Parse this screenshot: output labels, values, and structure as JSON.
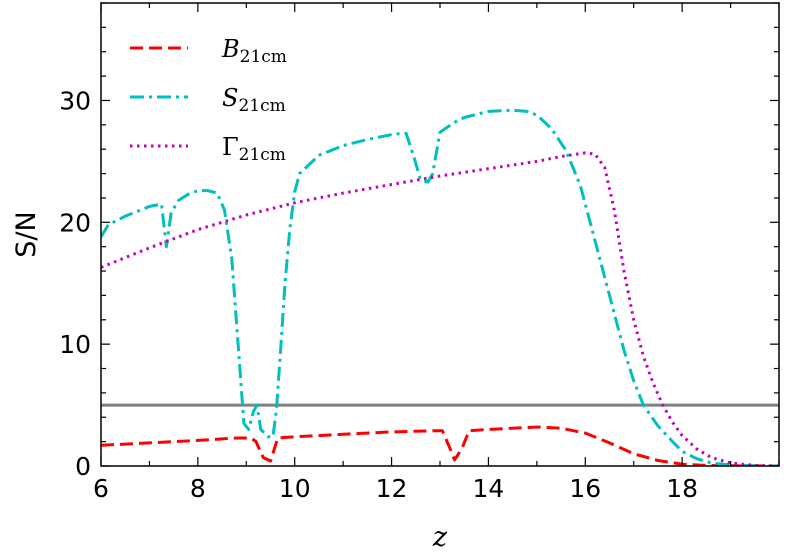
{
  "chart_data": {
    "type": "line",
    "xlabel": "z",
    "ylabel": "S/N",
    "xlim": [
      6,
      20
    ],
    "ylim": [
      0,
      38
    ],
    "xticks": [
      6,
      8,
      10,
      12,
      14,
      16,
      18
    ],
    "yticks": [
      0,
      10,
      20,
      30
    ],
    "grid": false,
    "legend_position": "top-left",
    "threshold": {
      "y": 5,
      "color": "#808080"
    },
    "series": [
      {
        "name": "B",
        "subscript": "21cm",
        "color": "#ff0000",
        "dash": "dashed",
        "x": [
          6,
          7,
          8,
          8.8,
          9.1,
          9.2,
          9.35,
          9.5,
          9.65,
          10,
          11,
          12,
          12.9,
          13.05,
          13.2,
          13.3,
          13.45,
          13.6,
          14,
          14.5,
          15,
          15.5,
          16,
          16.5,
          17,
          17.5,
          18,
          18.5,
          19,
          19.5,
          20
        ],
        "y": [
          1.7,
          1.9,
          2.1,
          2.3,
          2.3,
          2.0,
          0.7,
          0.4,
          2.3,
          2.4,
          2.6,
          2.8,
          2.9,
          2.9,
          1.5,
          0.5,
          1.4,
          2.9,
          3.0,
          3.1,
          3.2,
          3.1,
          2.7,
          1.9,
          1.0,
          0.45,
          0.15,
          0.05,
          0.02,
          0.01,
          0.0
        ]
      },
      {
        "name": "S",
        "subscript": "21cm",
        "color": "#00bfbf",
        "dash": "dashdot",
        "x": [
          6,
          6.15,
          6.5,
          7,
          7.25,
          7.35,
          7.45,
          7.6,
          7.8,
          8,
          8.2,
          8.4,
          8.55,
          8.7,
          8.85,
          8.95,
          9.05,
          9.15,
          9.22,
          9.3,
          9.45,
          9.55,
          9.62,
          9.7,
          9.8,
          9.9,
          10,
          10.1,
          10.5,
          11,
          11.5,
          12,
          12.2,
          12.3,
          12.45,
          12.6,
          12.75,
          12.85,
          13,
          13.3,
          13.5,
          14,
          14.5,
          14.8,
          15,
          15.3,
          15.6,
          15.9,
          16.2,
          16.5,
          16.8,
          17,
          17.2,
          17.5,
          17.8,
          18,
          18.3,
          18.6,
          19,
          19.5,
          20
        ],
        "y": [
          18.8,
          19.8,
          20.5,
          21.3,
          21.5,
          18.0,
          20.8,
          21.8,
          22.3,
          22.6,
          22.6,
          22.4,
          21.0,
          17.0,
          9.0,
          3.5,
          3.0,
          4.5,
          5.0,
          3.0,
          2.4,
          2.4,
          4.5,
          9.0,
          15.0,
          19.5,
          22.5,
          24.0,
          25.5,
          26.3,
          26.8,
          27.2,
          27.3,
          27.3,
          25.5,
          23.5,
          23.3,
          24.0,
          27.4,
          28.2,
          28.6,
          29.1,
          29.2,
          29.1,
          28.8,
          27.7,
          25.9,
          23.0,
          18.5,
          14.0,
          9.5,
          7.0,
          5.0,
          3.3,
          2.0,
          1.2,
          0.6,
          0.25,
          0.08,
          0.02,
          0.0
        ]
      },
      {
        "name": "Γ",
        "subscript": "21cm",
        "color": "#bf00bf",
        "dash": "dotted",
        "x": [
          6,
          7,
          8,
          9,
          10,
          11,
          12,
          13,
          14,
          15,
          15.5,
          16,
          16.2,
          16.4,
          16.6,
          16.8,
          17,
          17.2,
          17.4,
          17.6,
          17.8,
          18,
          18.3,
          18.6,
          19,
          19.5,
          20
        ],
        "y": [
          16.3,
          17.9,
          19.4,
          20.6,
          21.6,
          22.4,
          23.1,
          23.8,
          24.4,
          25.0,
          25.4,
          25.7,
          25.6,
          24.5,
          21.0,
          16.0,
          12.0,
          9.0,
          6.8,
          5.0,
          3.6,
          2.5,
          1.4,
          0.7,
          0.25,
          0.05,
          0.0
        ]
      }
    ]
  }
}
